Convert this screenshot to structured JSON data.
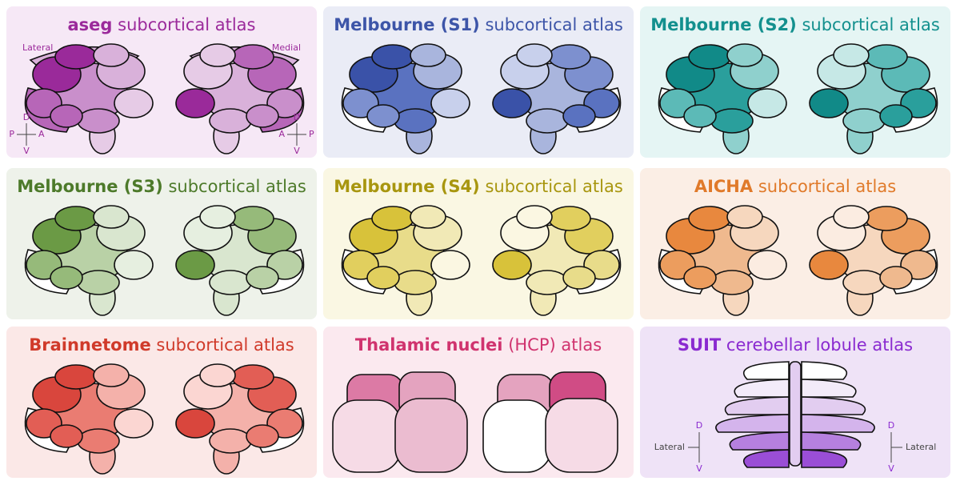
{
  "panels": [
    {
      "title_bold": "aseg",
      "title_rest": "subcortical atlas",
      "labels": {
        "lateral": "Lateral",
        "medial": "Medial",
        "left_d": "D",
        "left_v": "V",
        "left_p": "P",
        "left_a": "A",
        "right_d": "D",
        "right_v": "V",
        "right_a": "A",
        "right_p": "P"
      }
    },
    {
      "title_bold": "Melbourne (S1)",
      "title_rest": "subcortical atlas"
    },
    {
      "title_bold": "Melbourne (S2)",
      "title_rest": "subcortical atlas"
    },
    {
      "title_bold": "Melbourne (S3)",
      "title_rest": "subcortical atlas"
    },
    {
      "title_bold": "Melbourne (S4)",
      "title_rest": "subcortical atlas"
    },
    {
      "title_bold": "AICHA",
      "title_rest": "subcortical atlas"
    },
    {
      "title_bold": "Brainnetome",
      "title_rest": "subcortical atlas"
    },
    {
      "title_bold": "Thalamic nuclei",
      "title_rest": "(HCP) atlas"
    },
    {
      "title_bold": "SUIT",
      "title_rest": "cerebellar lobule atlas",
      "labels": {
        "left_lateral": "Lateral",
        "left_d": "D",
        "left_v": "V",
        "right_lateral": "Lateral",
        "right_d": "D",
        "right_v": "V"
      }
    }
  ]
}
